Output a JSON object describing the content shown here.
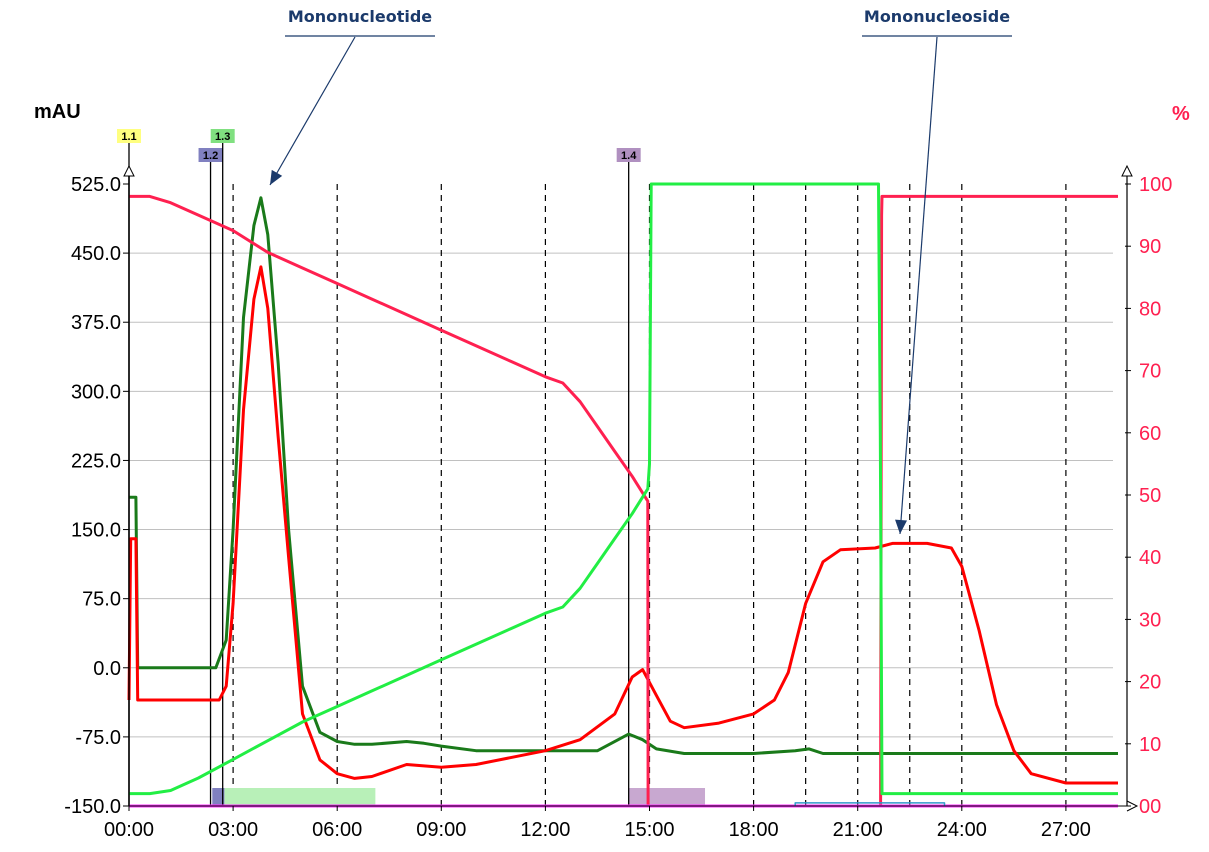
{
  "chart_data": {
    "type": "line",
    "title": "",
    "xlabel": "",
    "left_unit": "mAU",
    "right_unit": "%",
    "x_ticks": [
      "00:00",
      "03:00",
      "06:00",
      "09:00",
      "12:00",
      "15:00",
      "18:00",
      "21:00",
      "24:00",
      "27:00"
    ],
    "xlim": [
      0,
      28.5
    ],
    "ylim_left": [
      -150,
      525
    ],
    "ylim_right": [
      0,
      100
    ],
    "left_ticks": [
      "525.0",
      "450.0",
      "375.0",
      "300.0",
      "225.0",
      "150.0",
      "75.0",
      "0.0",
      "-75.0",
      "-150.0"
    ],
    "right_ticks": [
      "100",
      "90",
      "80",
      "70",
      "60",
      "50",
      "40",
      "30",
      "20",
      "10",
      "00"
    ],
    "annotations": [
      {
        "text": "Mononucleotide",
        "target_x": 3.8,
        "target_y": 510
      },
      {
        "text": "Mononucleoside",
        "target_x": 22.3,
        "target_y": 135
      }
    ],
    "markers": [
      {
        "label": "1.1",
        "x": 0,
        "color": "#ffff80"
      },
      {
        "label": "1.2",
        "x": 2.35,
        "color": "#8080c0"
      },
      {
        "label": "1.3",
        "x": 2.7,
        "color": "#80e080"
      },
      {
        "label": "1.4",
        "x": 14.4,
        "color": "#b090c0"
      }
    ],
    "fractions": [
      {
        "x0": 2.4,
        "x1": 2.75,
        "color": "#8080c0"
      },
      {
        "x0": 2.75,
        "x1": 7.1,
        "color": "#b8f0b8"
      },
      {
        "x0": 14.4,
        "x1": 16.6,
        "color": "#c8a8d0"
      }
    ],
    "series": [
      {
        "color": "#1a7a1a",
        "axis": "left",
        "x": [
          0,
          0.05,
          0.1,
          0.15,
          0.2,
          0.25,
          2.5,
          2.8,
          3.0,
          3.3,
          3.6,
          3.8,
          4.0,
          4.3,
          4.6,
          5.0,
          5.5,
          6.0,
          6.5,
          7.0,
          8.0,
          8.5,
          9.0,
          10.0,
          12.0,
          13.5,
          14.4,
          14.8,
          15.2,
          16.0,
          18.0,
          19.2,
          19.6,
          20.0,
          22.0,
          28.5
        ],
        "y": [
          185,
          185,
          185,
          185,
          185,
          0,
          0,
          30,
          150,
          380,
          480,
          510,
          470,
          330,
          150,
          -20,
          -70,
          -80,
          -83,
          -83,
          -80,
          -82,
          -85,
          -90,
          -90,
          -90,
          -72,
          -78,
          -88,
          -93,
          -93,
          -90,
          -88,
          -93,
          -93,
          -93
        ]
      },
      {
        "color": "#ff0000",
        "axis": "left",
        "x": [
          0,
          0.05,
          0.1,
          0.2,
          0.25,
          0.3,
          0.4,
          2.6,
          2.8,
          3.0,
          3.3,
          3.6,
          3.8,
          4.0,
          4.3,
          4.6,
          5.0,
          5.5,
          6.0,
          6.5,
          7.0,
          8.0,
          9.0,
          10.0,
          12.0,
          13.0,
          14.0,
          14.5,
          14.8,
          15.2,
          15.6,
          16.0,
          17.0,
          18.0,
          18.6,
          19.0,
          19.5,
          20.0,
          20.5,
          21.5,
          22.0,
          23.0,
          23.7,
          24.0,
          24.5,
          25.0,
          25.5,
          26.0,
          27.0,
          28.5
        ],
        "y": [
          -35,
          140,
          140,
          140,
          -35,
          -35,
          -35,
          -35,
          -20,
          70,
          280,
          400,
          435,
          390,
          250,
          120,
          -50,
          -100,
          -115,
          -120,
          -118,
          -105,
          -108,
          -105,
          -90,
          -78,
          -50,
          -10,
          -2,
          -30,
          -58,
          -65,
          -60,
          -50,
          -35,
          -5,
          70,
          115,
          128,
          130,
          135,
          135,
          130,
          110,
          40,
          -40,
          -90,
          -115,
          -125,
          -125
        ]
      },
      {
        "color": "#ff2050",
        "axis": "right",
        "x": [
          0,
          0.6,
          1.2,
          2.0,
          3.0,
          4.0,
          5.0,
          6.0,
          7.0,
          8.0,
          9.0,
          10.0,
          11.0,
          12.0,
          12.5,
          13.0,
          13.5,
          14.0,
          14.5,
          14.95,
          14.96,
          15.01,
          15.02,
          21.65,
          21.66,
          21.69,
          21.7,
          28.5
        ],
        "y": [
          98,
          98,
          97,
          95,
          92.5,
          89,
          86.5,
          84,
          81.5,
          79,
          76.5,
          74,
          71.5,
          69,
          68,
          65,
          61,
          57,
          53,
          49,
          0,
          0,
          0,
          0,
          0,
          95,
          98,
          98
        ]
      },
      {
        "color": "#22ee44",
        "axis": "right",
        "x": [
          0,
          0.6,
          1.2,
          2.0,
          3.0,
          4.0,
          5.0,
          6.0,
          7.0,
          8.0,
          9.0,
          10.0,
          11.0,
          12.0,
          12.5,
          13.0,
          13.5,
          14.0,
          14.5,
          14.95,
          15.0,
          15.05,
          15.1,
          21.6,
          21.65,
          21.7,
          28.5
        ],
        "y": [
          2,
          2,
          2.5,
          4.5,
          7.5,
          10.5,
          13.5,
          16,
          18.5,
          21,
          23.5,
          26,
          28.5,
          31,
          32,
          35,
          39,
          43,
          47,
          51,
          55,
          100,
          100,
          100,
          60,
          2,
          2
        ]
      },
      {
        "color": "#ff33ff",
        "axis": "right",
        "x": [
          0,
          28.5
        ],
        "y": [
          0,
          0
        ]
      },
      {
        "color": "#3399cc",
        "axis": "right",
        "x": [
          19.2,
          19.2,
          23.5,
          23.5
        ],
        "y": [
          0,
          0.5,
          0.5,
          0
        ]
      }
    ]
  }
}
